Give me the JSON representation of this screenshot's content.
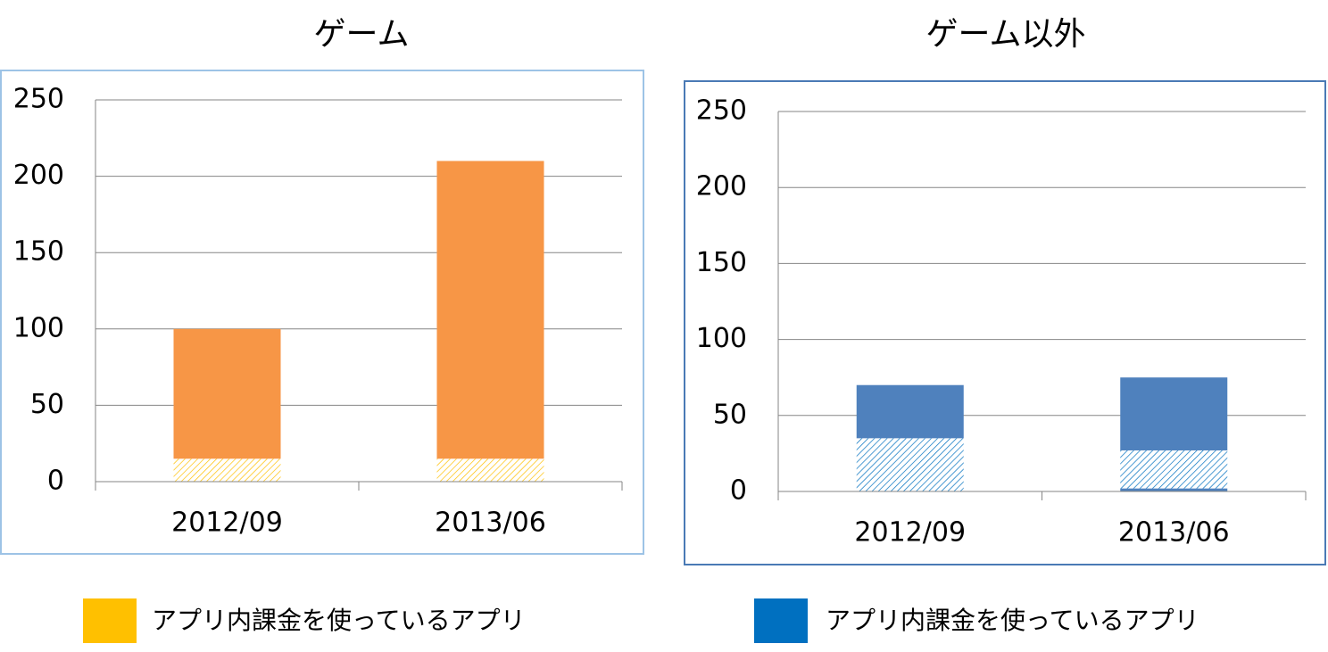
{
  "chart_data": [
    {
      "type": "bar",
      "stacked": true,
      "title": "ゲーム",
      "categories": [
        "2012/09",
        "2013/06"
      ],
      "series": [
        {
          "name": "アプリ内課金を使っているアプリ",
          "color": "#ffc000",
          "hatch": true,
          "values": [
            15,
            15
          ]
        },
        {
          "color": "#f79646",
          "values": [
            85,
            195
          ]
        }
      ],
      "ylim": [
        0,
        250
      ],
      "yticks": [
        0,
        50,
        100,
        150,
        200,
        250
      ],
      "grid": true
    },
    {
      "type": "bar",
      "stacked": true,
      "title": "ゲーム以外",
      "categories": [
        "2012/09",
        "2013/06"
      ],
      "series": [
        {
          "color": "#4f81bd",
          "values": [
            null,
            2
          ]
        },
        {
          "name": "アプリ内課金を使っているアプリ",
          "color": "#0070c0",
          "hatch": true,
          "values": [
            35,
            25
          ]
        },
        {
          "color": "#4f81bd",
          "values": [
            35,
            48
          ]
        }
      ],
      "ylim": [
        0,
        250
      ],
      "yticks": [
        0,
        50,
        100,
        150,
        200,
        250
      ],
      "grid": true
    }
  ]
}
